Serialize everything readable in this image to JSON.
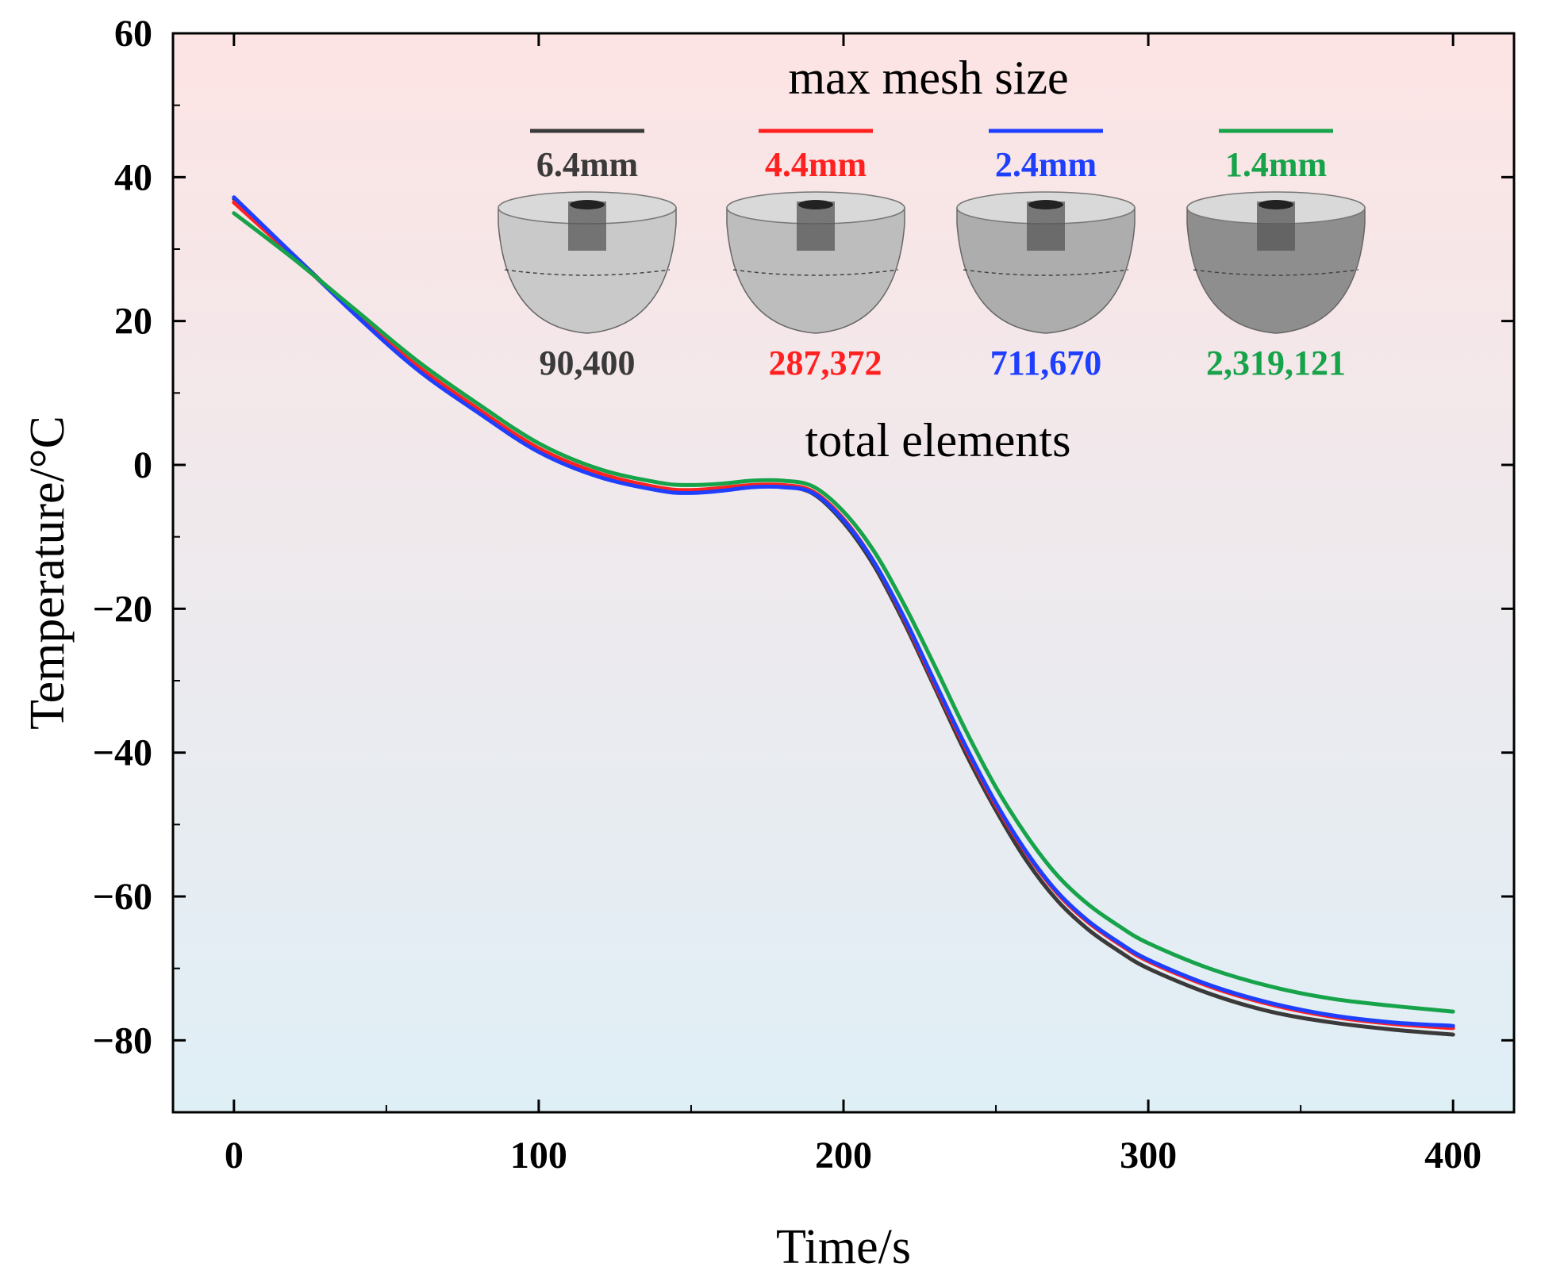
{
  "chart_data": {
    "type": "line",
    "title": "",
    "xlabel": "Time/s",
    "ylabel": "Temperature/°C",
    "xlim": [
      -20,
      420
    ],
    "ylim": [
      -90,
      60
    ],
    "xticks": [
      0,
      100,
      200,
      300,
      400
    ],
    "xtick_labels": [
      "0",
      "100",
      "200",
      "300",
      "400"
    ],
    "yticks": [
      60,
      40,
      20,
      0,
      -20,
      -40,
      -60,
      -80
    ],
    "ytick_labels": [
      "60",
      "40",
      "20",
      "0",
      "−20",
      "−40",
      "−60",
      "−80"
    ],
    "background_gradient": [
      "#fde4e4",
      "#dfeff6"
    ],
    "legend": {
      "title_top": "max mesh size",
      "title_bottom": "total elements",
      "placement": "top-right inside plot"
    },
    "series": [
      {
        "name": "6.4mm",
        "elements": "90,400",
        "color": "#3a3a3a",
        "x": [
          0,
          20,
          40,
          60,
          80,
          100,
          120,
          140,
          150,
          160,
          170,
          180,
          190,
          200,
          210,
          220,
          230,
          240,
          250,
          260,
          270,
          280,
          290,
          300,
          320,
          340,
          360,
          380,
          400
        ],
        "y": [
          37,
          29,
          21,
          13.5,
          7.5,
          2.0,
          -1.5,
          -3.5,
          -3.8,
          -3.5,
          -3.0,
          -3.0,
          -4.0,
          -8.0,
          -14,
          -22,
          -31,
          -40,
          -48,
          -55,
          -60.5,
          -64.5,
          -67.5,
          -70,
          -73.5,
          -76,
          -77.5,
          -78.5,
          -79.2
        ]
      },
      {
        "name": "4.4mm",
        "elements": "287,372",
        "color": "#ff2020",
        "x": [
          0,
          20,
          40,
          60,
          80,
          100,
          120,
          140,
          150,
          160,
          170,
          180,
          190,
          200,
          210,
          220,
          230,
          240,
          250,
          260,
          270,
          280,
          290,
          300,
          320,
          340,
          360,
          380,
          400
        ],
        "y": [
          36.5,
          28.8,
          21,
          13.8,
          7.8,
          2.3,
          -1.2,
          -3.2,
          -3.5,
          -3.2,
          -2.8,
          -2.8,
          -3.7,
          -7.5,
          -13.5,
          -21.5,
          -30.5,
          -39.3,
          -47.3,
          -54,
          -59.5,
          -63.5,
          -66.5,
          -69,
          -72.5,
          -75,
          -76.7,
          -77.7,
          -78.3
        ]
      },
      {
        "name": "2.4mm",
        "elements": "711,670",
        "color": "#1f3fff",
        "x": [
          0,
          20,
          40,
          60,
          80,
          100,
          120,
          140,
          150,
          160,
          170,
          180,
          190,
          200,
          210,
          220,
          230,
          240,
          250,
          260,
          270,
          280,
          290,
          300,
          320,
          340,
          360,
          380,
          400
        ],
        "y": [
          37.2,
          29,
          20.8,
          13.3,
          7.3,
          1.8,
          -1.7,
          -3.6,
          -3.9,
          -3.6,
          -3.1,
          -3.1,
          -3.9,
          -7.7,
          -13.5,
          -21.3,
          -30.2,
          -39,
          -47,
          -53.8,
          -59.3,
          -63.3,
          -66.3,
          -68.8,
          -72.3,
          -74.8,
          -76.5,
          -77.5,
          -78.0
        ]
      },
      {
        "name": "1.4mm",
        "elements": "2,319,121",
        "color": "#16a34a",
        "x": [
          0,
          20,
          40,
          60,
          80,
          100,
          120,
          140,
          150,
          160,
          170,
          180,
          190,
          200,
          210,
          220,
          230,
          240,
          250,
          260,
          270,
          280,
          290,
          300,
          320,
          340,
          360,
          380,
          400
        ],
        "y": [
          35,
          28.5,
          21.5,
          14.5,
          8.5,
          3.0,
          -0.6,
          -2.5,
          -2.8,
          -2.6,
          -2.2,
          -2.2,
          -3.0,
          -6.5,
          -12,
          -19.5,
          -28,
          -36.8,
          -44.8,
          -51.5,
          -57,
          -61,
          -64,
          -66.5,
          -70,
          -72.5,
          -74.2,
          -75.2,
          -76.0
        ]
      }
    ]
  }
}
